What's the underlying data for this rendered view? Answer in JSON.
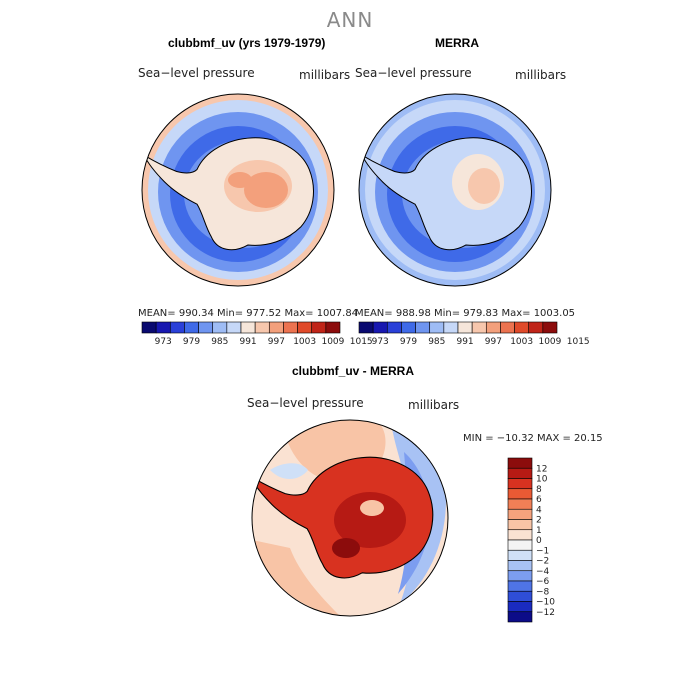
{
  "page": {
    "title": "ANN"
  },
  "panels": {
    "model": {
      "title": "clubbmf_uv (yrs 1979-1979)",
      "left_label": "Sea−level pressure",
      "right_label": "millibars",
      "stats_text": "MEAN= 990.34   Min= 977.52   Max= 1007.84"
    },
    "obs": {
      "title": "MERRA",
      "left_label": "Sea−level pressure",
      "right_label": "millibars",
      "stats_text": "MEAN= 988.98   Min= 979.83   Max= 1003.05"
    },
    "diff": {
      "title": "clubbmf_uv - MERRA",
      "left_label": "Sea−level pressure",
      "right_label": "millibars",
      "minmax_text": "MIN = −10.32  MAX =   20.15"
    }
  },
  "chart_data": [
    {
      "type": "heatmap",
      "projection": "south-polar-stereographic",
      "title": "clubbmf_uv (yrs 1979-1979)",
      "field": "Sea-level pressure",
      "units": "millibars",
      "mean": 990.34,
      "min": 977.52,
      "max": 1007.84,
      "colorbar": {
        "ticks": [
          "973",
          "979",
          "985",
          "991",
          "997",
          "1003",
          "1009",
          "1015"
        ],
        "colors": [
          "#0a0a70",
          "#1818b0",
          "#2a40d8",
          "#3f6ae8",
          "#6f95f0",
          "#9ebcf5",
          "#c6d8f8",
          "#f6e6da",
          "#f7c7ad",
          "#f3a07c",
          "#ec7350",
          "#e04a2a",
          "#c02418",
          "#8c0c0c"
        ]
      }
    },
    {
      "type": "heatmap",
      "projection": "south-polar-stereographic",
      "title": "MERRA",
      "field": "Sea-level pressure",
      "units": "millibars",
      "mean": 988.98,
      "min": 979.83,
      "max": 1003.05,
      "colorbar": {
        "ticks": [
          "973",
          "979",
          "985",
          "991",
          "997",
          "1003",
          "1009",
          "1015"
        ],
        "colors": [
          "#0a0a70",
          "#1818b0",
          "#2a40d8",
          "#3f6ae8",
          "#6f95f0",
          "#9ebcf5",
          "#c6d8f8",
          "#f6e6da",
          "#f7c7ad",
          "#f3a07c",
          "#ec7350",
          "#e04a2a",
          "#c02418",
          "#8c0c0c"
        ]
      }
    },
    {
      "type": "heatmap",
      "projection": "south-polar-stereographic",
      "title": "clubbmf_uv - MERRA",
      "field": "Sea-level pressure",
      "units": "millibars",
      "min": -10.32,
      "max": 20.15,
      "colorbar": {
        "ticks": [
          "12",
          "10",
          "8",
          "6",
          "4",
          "2",
          "1",
          "0",
          "−1",
          "−2",
          "−4",
          "−6",
          "−8",
          "−10",
          "−12"
        ],
        "colors": [
          "#8c0c0c",
          "#b61a14",
          "#d83220",
          "#ea5a34",
          "#f17f56",
          "#f5a27d",
          "#f8c4a6",
          "#fae2d2",
          "#f4f4f4",
          "#cfe0f7",
          "#a8c2f4",
          "#7c9df0",
          "#4f74e6",
          "#2f4ed8",
          "#1a2bc0",
          "#0c0c88"
        ]
      }
    }
  ]
}
